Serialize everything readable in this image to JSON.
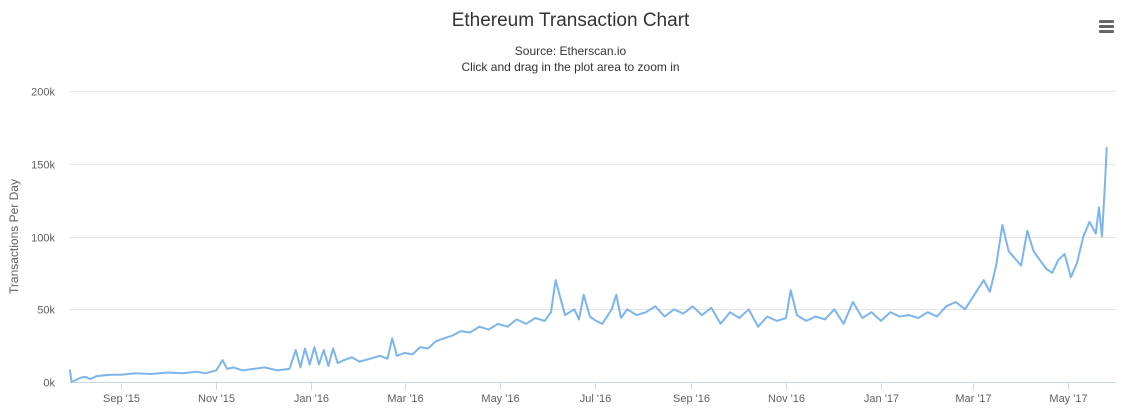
{
  "header": {
    "title": "Ethereum Transaction Chart",
    "subtitle": "Source: Etherscan.io",
    "hint": "Click and drag in the plot area to zoom in"
  },
  "menu": {
    "icon": "hamburger-menu-icon"
  },
  "colors": {
    "line": "#7cb5ec",
    "grid": "#e6e6e6",
    "text": "#333333"
  },
  "chart_data": {
    "type": "line",
    "title": "Ethereum Transaction Chart",
    "subtitle": "Source: Etherscan.io",
    "ylabel": "Transactions Per Day",
    "xlabel": "",
    "ylim": [
      0,
      200000
    ],
    "xlim": [
      "2015-07-30",
      "2017-06-01"
    ],
    "yticks": [
      0,
      50000,
      100000,
      150000,
      200000
    ],
    "ytick_labels": [
      "0k",
      "50k",
      "100k",
      "150k",
      "200k"
    ],
    "xtick_dates": [
      "2015-09-01",
      "2015-11-01",
      "2016-01-01",
      "2016-03-01",
      "2016-05-01",
      "2016-07-01",
      "2016-09-01",
      "2016-11-01",
      "2017-01-01",
      "2017-03-01",
      "2017-05-01"
    ],
    "xtick_labels": [
      "Sep '15",
      "Nov '15",
      "Jan '16",
      "Mar '16",
      "May '16",
      "Jul '16",
      "Sep '16",
      "Nov '16",
      "Jan '17",
      "Mar '17",
      "May '17"
    ],
    "grid": true,
    "legend": false,
    "series": [
      {
        "x": [
          "2015-07-30",
          "2015-07-31",
          "2015-08-02",
          "2015-08-06",
          "2015-08-09",
          "2015-08-12",
          "2015-08-16",
          "2015-08-20",
          "2015-08-25",
          "2015-09-01",
          "2015-09-10",
          "2015-09-20",
          "2015-10-01",
          "2015-10-10",
          "2015-10-20",
          "2015-10-25",
          "2015-11-01",
          "2015-11-05",
          "2015-11-08",
          "2015-11-12",
          "2015-11-18",
          "2015-11-25",
          "2015-12-02",
          "2015-12-10",
          "2015-12-18",
          "2015-12-22",
          "2015-12-25",
          "2015-12-28",
          "2015-12-31",
          "2016-01-03",
          "2016-01-06",
          "2016-01-09",
          "2016-01-12",
          "2016-01-15",
          "2016-01-18",
          "2016-01-22",
          "2016-01-27",
          "2016-02-01",
          "2016-02-08",
          "2016-02-14",
          "2016-02-19",
          "2016-02-22",
          "2016-02-25",
          "2016-03-01",
          "2016-03-06",
          "2016-03-11",
          "2016-03-16",
          "2016-03-21",
          "2016-03-26",
          "2016-04-01",
          "2016-04-06",
          "2016-04-12",
          "2016-04-18",
          "2016-04-24",
          "2016-04-30",
          "2016-05-06",
          "2016-05-12",
          "2016-05-18",
          "2016-05-24",
          "2016-05-30",
          "2016-06-03",
          "2016-06-06",
          "2016-06-12",
          "2016-06-18",
          "2016-06-21",
          "2016-06-24",
          "2016-06-28",
          "2016-07-02",
          "2016-07-06",
          "2016-07-12",
          "2016-07-15",
          "2016-07-18",
          "2016-07-22",
          "2016-07-28",
          "2016-08-03",
          "2016-08-09",
          "2016-08-15",
          "2016-08-21",
          "2016-08-27",
          "2016-09-02",
          "2016-09-08",
          "2016-09-14",
          "2016-09-20",
          "2016-09-26",
          "2016-10-02",
          "2016-10-08",
          "2016-10-14",
          "2016-10-20",
          "2016-10-26",
          "2016-11-01",
          "2016-11-04",
          "2016-11-08",
          "2016-11-14",
          "2016-11-20",
          "2016-11-26",
          "2016-12-02",
          "2016-12-08",
          "2016-12-14",
          "2016-12-20",
          "2016-12-26",
          "2017-01-01",
          "2017-01-07",
          "2017-01-13",
          "2017-01-19",
          "2017-01-25",
          "2017-01-31",
          "2017-02-06",
          "2017-02-12",
          "2017-02-18",
          "2017-02-24",
          "2017-03-02",
          "2017-03-08",
          "2017-03-12",
          "2017-03-16",
          "2017-03-20",
          "2017-03-24",
          "2017-03-28",
          "2017-04-01",
          "2017-04-05",
          "2017-04-09",
          "2017-04-13",
          "2017-04-17",
          "2017-04-21",
          "2017-04-25",
          "2017-04-29",
          "2017-05-03",
          "2017-05-07",
          "2017-05-11",
          "2017-05-15",
          "2017-05-19",
          "2017-05-21",
          "2017-05-23",
          "2017-05-25",
          "2017-05-26"
        ],
        "y": [
          8000,
          0,
          1000,
          3000,
          3500,
          2000,
          4000,
          4500,
          5000,
          5000,
          6000,
          5500,
          6500,
          6000,
          7000,
          6000,
          8000,
          15000,
          9000,
          10000,
          8000,
          9000,
          10000,
          8000,
          9000,
          22000,
          10000,
          23000,
          12000,
          24000,
          12000,
          22000,
          11000,
          23000,
          13000,
          15000,
          17000,
          14000,
          16000,
          18000,
          16000,
          30000,
          18000,
          20000,
          19000,
          24000,
          23000,
          28000,
          30000,
          32000,
          35000,
          34000,
          38000,
          36000,
          40000,
          38000,
          43000,
          40000,
          44000,
          42000,
          48000,
          70000,
          46000,
          50000,
          43000,
          60000,
          45000,
          42000,
          40000,
          50000,
          60000,
          44000,
          50000,
          46000,
          48000,
          52000,
          45000,
          50000,
          47000,
          52000,
          46000,
          51000,
          40000,
          48000,
          44000,
          50000,
          38000,
          45000,
          42000,
          44000,
          63000,
          46000,
          42000,
          45000,
          43000,
          50000,
          40000,
          55000,
          44000,
          48000,
          42000,
          48000,
          45000,
          46000,
          44000,
          48000,
          45000,
          52000,
          55000,
          50000,
          60000,
          70000,
          62000,
          80000,
          108000,
          90000,
          85000,
          80000,
          104000,
          90000,
          84000,
          78000,
          75000,
          84000,
          88000,
          72000,
          82000,
          100000,
          110000,
          102000,
          120000,
          100000,
          138000,
          161000
        ]
      }
    ]
  }
}
